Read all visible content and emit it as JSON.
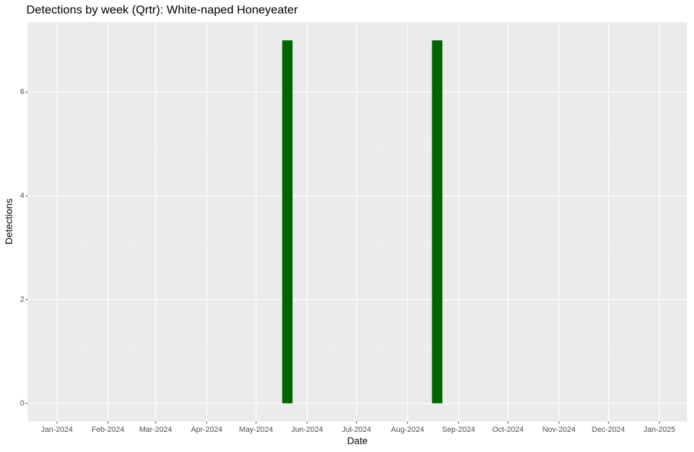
{
  "chart_data": {
    "type": "bar",
    "title": "Detections by week (Qrtr): White-naped Honeyeater",
    "x_label": "Date",
    "y_label": "Detections",
    "x": [
      140,
      231
    ],
    "values": [
      7,
      7
    ],
    "color": "#006400",
    "xlim": [
      -17.7,
      382.8
    ],
    "xticks": [
      {
        "value": 0,
        "label": "Jan-2024"
      },
      {
        "value": 31,
        "label": "Feb-2024"
      },
      {
        "value": 60,
        "label": "Mar-2024"
      },
      {
        "value": 91,
        "label": "Apr-2024"
      },
      {
        "value": 121,
        "label": "May-2024"
      },
      {
        "value": 152,
        "label": "Jun-2024"
      },
      {
        "value": 182,
        "label": "Jul-2024"
      },
      {
        "value": 213,
        "label": "Aug-2024"
      },
      {
        "value": 244,
        "label": "Sep-2024"
      },
      {
        "value": 274,
        "label": "Oct-2024"
      },
      {
        "value": 305,
        "label": "Nov-2024"
      },
      {
        "value": 335,
        "label": "Dec-2024"
      },
      {
        "value": 366,
        "label": "Jan-2025"
      }
    ],
    "ylim": [
      -0.35,
      7.35
    ],
    "yticks": [
      0,
      2,
      4,
      6
    ],
    "grid": true
  }
}
